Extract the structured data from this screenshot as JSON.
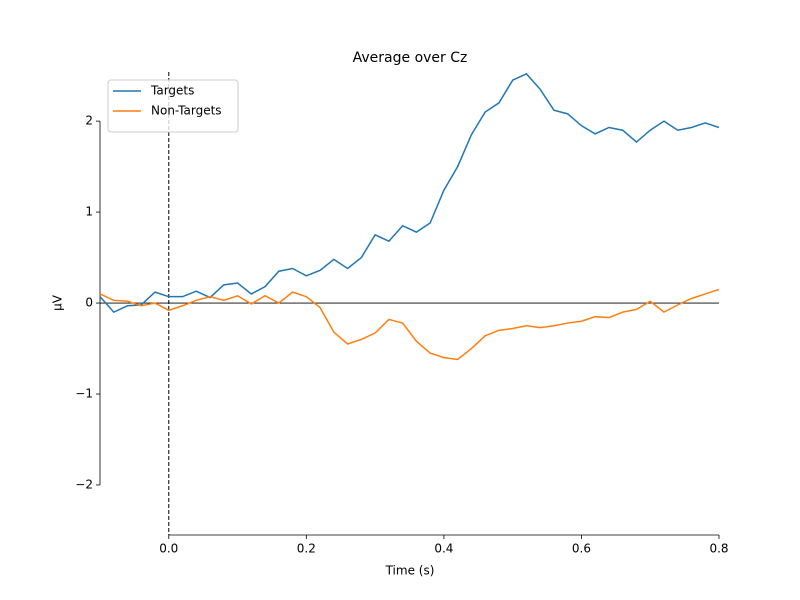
{
  "chart_data": {
    "type": "line",
    "title": "Average over Cz",
    "xlabel": "Time (s)",
    "ylabel": "µV",
    "x": [
      -0.1,
      -0.08,
      -0.06,
      -0.04,
      -0.02,
      0.0,
      0.02,
      0.04,
      0.06,
      0.08,
      0.1,
      0.12,
      0.14,
      0.16,
      0.18,
      0.2,
      0.22,
      0.24,
      0.26,
      0.28,
      0.3,
      0.32,
      0.34,
      0.36,
      0.38,
      0.4,
      0.42,
      0.44,
      0.46,
      0.48,
      0.5,
      0.52,
      0.54,
      0.56,
      0.58,
      0.6,
      0.62,
      0.64,
      0.66,
      0.68,
      0.7,
      0.72,
      0.74,
      0.76,
      0.78,
      0.8
    ],
    "series": [
      {
        "name": "Targets",
        "color": "#1f77b4",
        "values": [
          0.07,
          -0.1,
          -0.03,
          -0.02,
          0.12,
          0.07,
          0.07,
          0.13,
          0.06,
          0.2,
          0.22,
          0.1,
          0.18,
          0.35,
          0.38,
          0.3,
          0.36,
          0.48,
          0.38,
          0.5,
          0.75,
          0.68,
          0.85,
          0.78,
          0.88,
          1.24,
          1.5,
          1.85,
          2.1,
          2.2,
          2.45,
          2.52,
          2.35,
          2.12,
          2.08,
          1.95,
          1.86,
          1.93,
          1.9,
          1.77,
          1.9,
          2.0,
          1.9,
          1.93,
          1.98,
          1.93
        ]
      },
      {
        "name": "Non-Targets",
        "color": "#ff7f0e",
        "values": [
          0.1,
          0.03,
          0.02,
          -0.03,
          0.0,
          -0.08,
          -0.03,
          0.03,
          0.07,
          0.03,
          0.08,
          -0.01,
          0.08,
          0.0,
          0.12,
          0.07,
          -0.05,
          -0.32,
          -0.45,
          -0.4,
          -0.33,
          -0.18,
          -0.22,
          -0.42,
          -0.55,
          -0.6,
          -0.62,
          -0.5,
          -0.36,
          -0.3,
          -0.28,
          -0.25,
          -0.27,
          -0.25,
          -0.22,
          -0.2,
          -0.15,
          -0.16,
          -0.1,
          -0.07,
          0.02,
          -0.1,
          -0.02,
          0.05,
          0.1,
          0.15
        ]
      }
    ],
    "xlim": [
      -0.1,
      0.8
    ],
    "xticks": [
      {
        "value": 0,
        "label": "0.0"
      },
      0.2,
      0.4,
      0.6,
      0.8
    ],
    "ylim": [
      -2.55,
      2.54
    ],
    "yticks": [
      {
        "value": -2,
        "label": "−2"
      },
      {
        "value": -1,
        "label": "−1"
      },
      0,
      1,
      2
    ],
    "grid": false,
    "legend": "upper left"
  }
}
